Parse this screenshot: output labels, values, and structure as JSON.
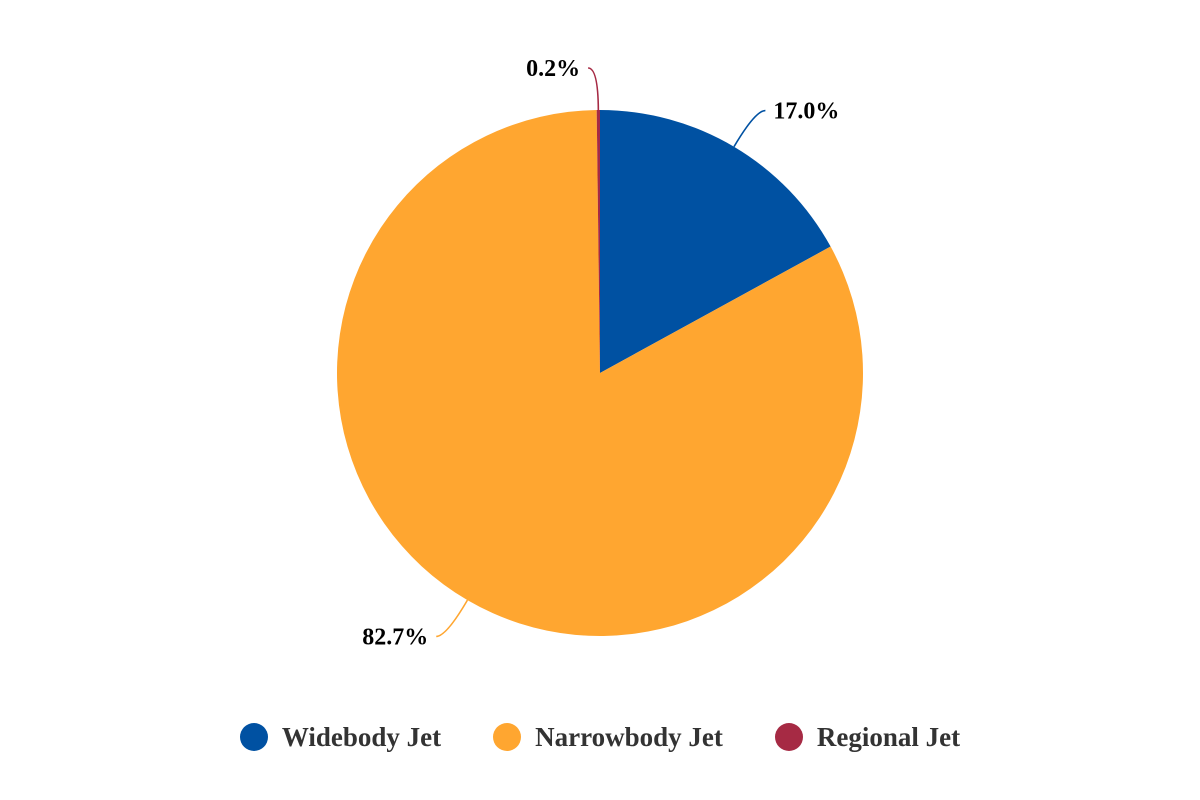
{
  "chart_data": {
    "type": "pie",
    "categories": [
      "Widebody Jet",
      "Narrowbody Jet",
      "Regional Jet"
    ],
    "values": [
      17.0,
      82.7,
      0.2
    ],
    "data_labels": [
      "17.0%",
      "82.7%",
      "0.2%"
    ],
    "colors": [
      "#0051a2",
      "#ffa630",
      "#a62a44"
    ],
    "legend_placement": "bottom",
    "start_angle": "top",
    "direction": "clockwise"
  }
}
